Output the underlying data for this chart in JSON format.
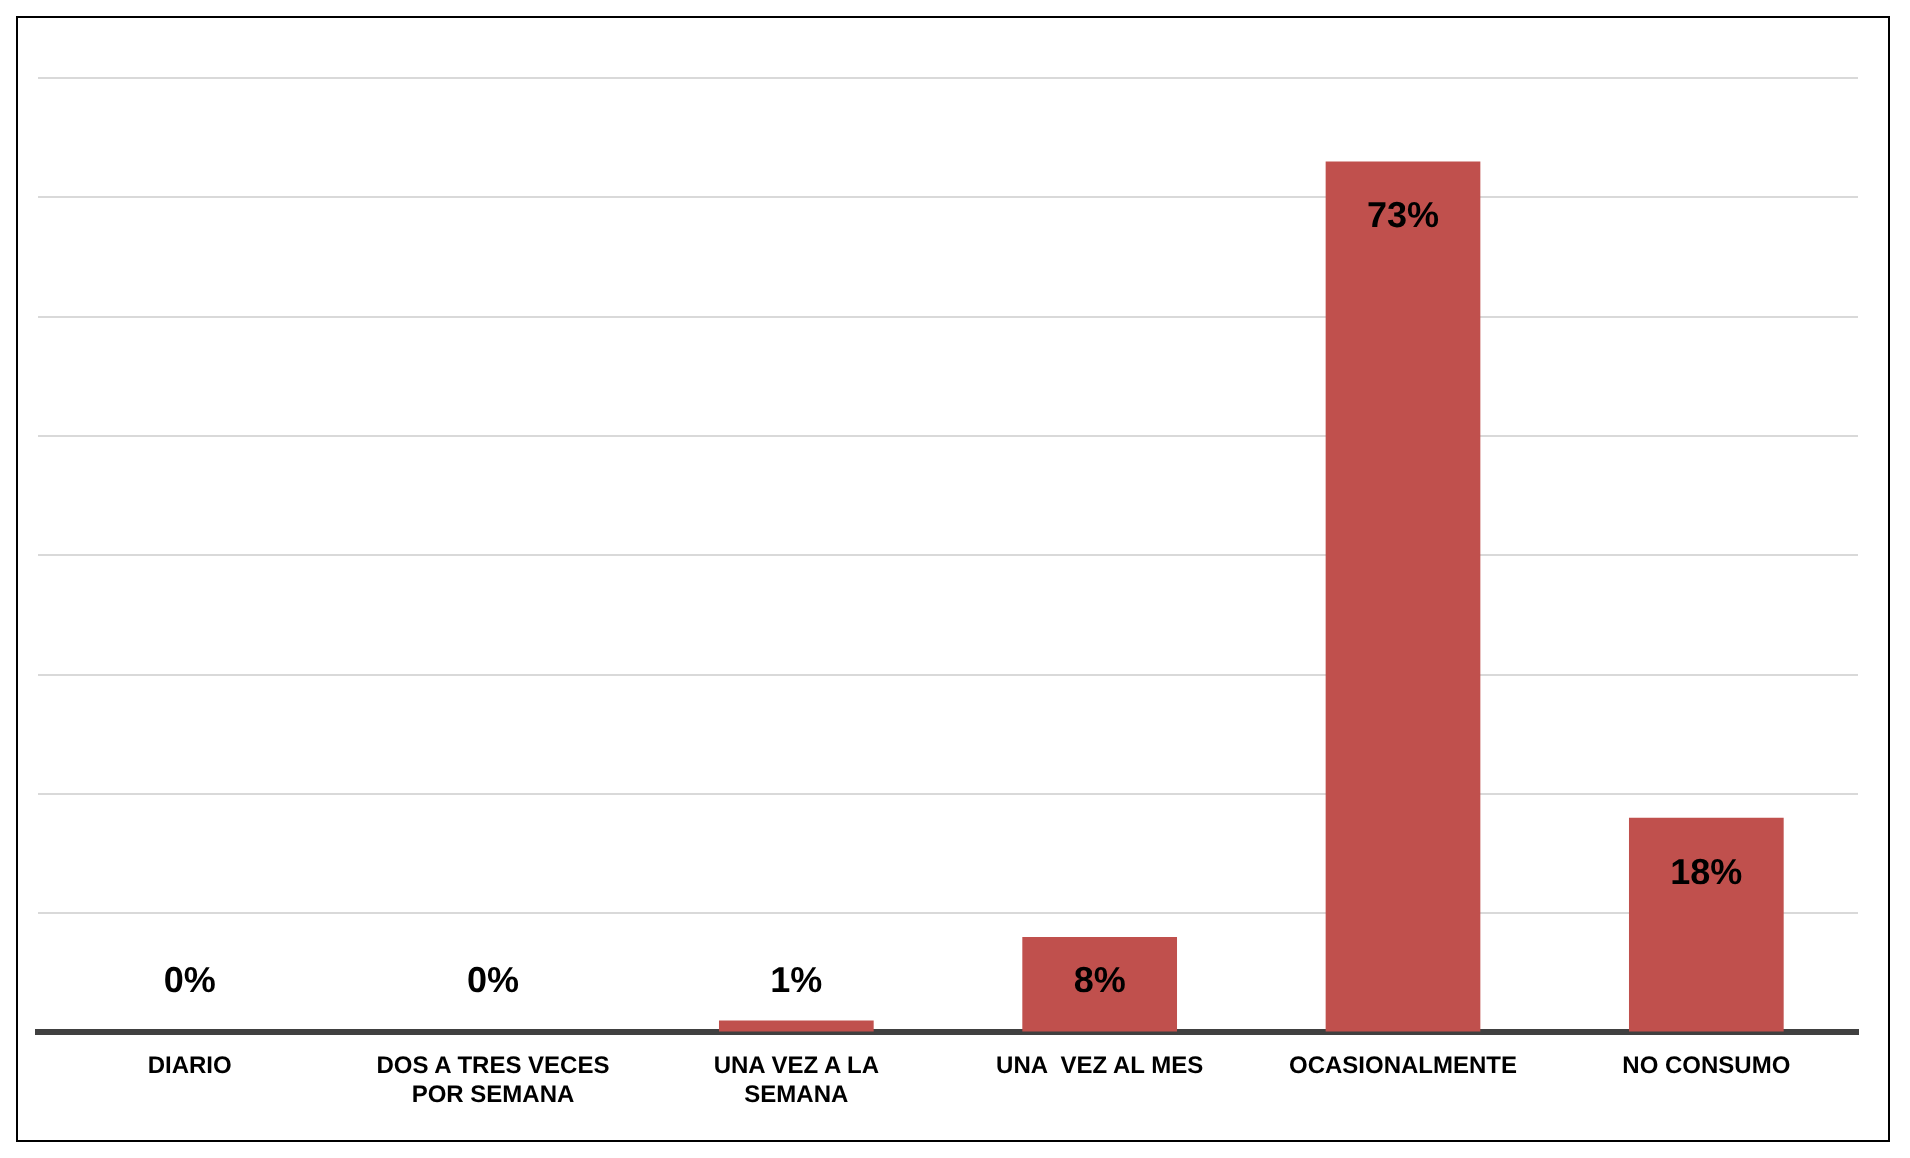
{
  "chart_data": {
    "type": "bar",
    "categories": [
      "DIARIO",
      "DOS A TRES VECES POR SEMANA",
      "UNA VEZ A LA SEMANA",
      "UNA  VEZ AL MES",
      "OCASIONALMENTE",
      "NO CONSUMO"
    ],
    "values": [
      0,
      0,
      1,
      8,
      73,
      18
    ],
    "value_labels": [
      "0%",
      "0%",
      "1%",
      "8%",
      "73%",
      "18%"
    ],
    "color": "#c0504d",
    "ylim": [
      0,
      80
    ],
    "yticks": [
      {
        "value": 0,
        "label": null
      },
      {
        "value": 10,
        "label": null
      },
      {
        "value": 20,
        "label": null
      },
      {
        "value": 30,
        "label": null
      },
      {
        "value": 40,
        "label": null
      },
      {
        "value": 50,
        "label": null
      },
      {
        "value": 60,
        "label": null
      },
      {
        "value": 70,
        "label": null
      },
      {
        "value": 80,
        "label": null
      }
    ],
    "tick_labels": "x",
    "grid": "y",
    "legend": false
  }
}
